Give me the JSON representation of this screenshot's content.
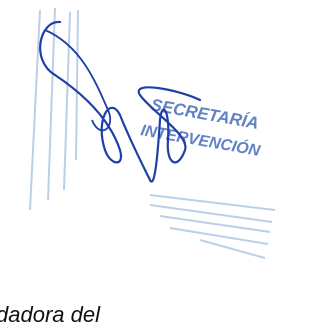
{
  "stamp": {
    "line1": "SECRETARÍA",
    "line2": "INTERVENCIÓN"
  },
  "footer_text": "dadora del"
}
